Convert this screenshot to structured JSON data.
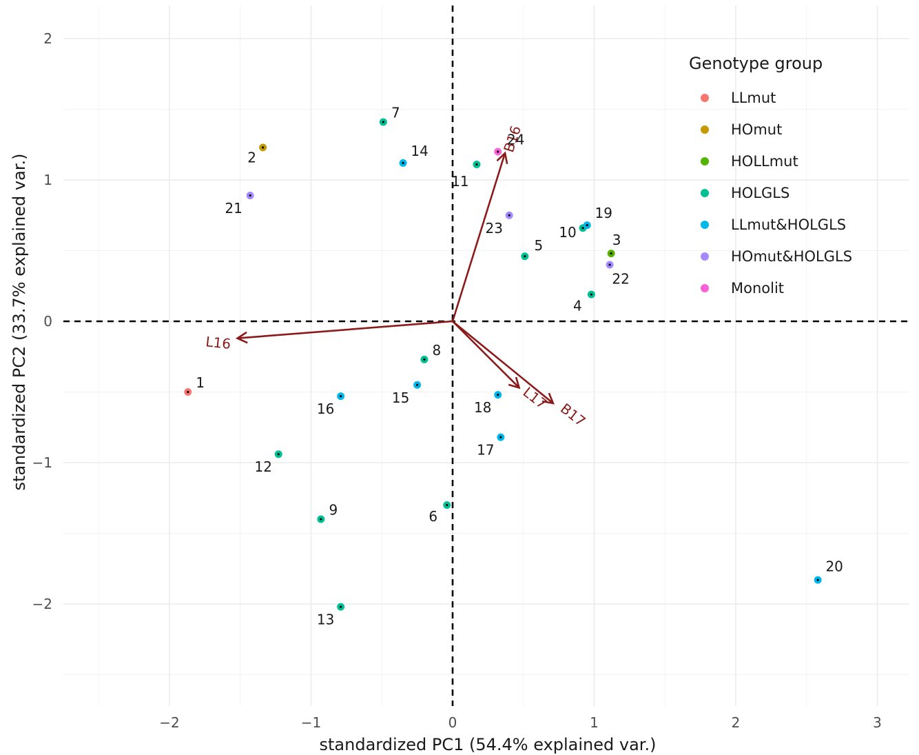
{
  "chart_data": {
    "type": "scatter",
    "subtype": "pca-biplot",
    "xlabel": "standardized PC1 (54.4% explained var.)",
    "ylabel": "standardized PC2 (33.7% explained var.)",
    "xlim": [
      -2.6,
      3.25
    ],
    "ylim": [
      -2.6,
      2.25
    ],
    "x_ticks": [
      -2,
      -1,
      0,
      1,
      2,
      3
    ],
    "y_ticks": [
      -2,
      -1,
      0,
      1,
      2
    ],
    "x_tick_labels": [
      "−2",
      "−1",
      "0",
      "1",
      "2",
      "3"
    ],
    "y_tick_labels": [
      "−2",
      "−1",
      "0",
      "1",
      "2"
    ],
    "grid": true,
    "reference_lines": {
      "x": 0,
      "y": 0,
      "style": "dashed"
    },
    "legend": {
      "title": "Genotype group",
      "placement": "right",
      "entries": [
        {
          "name": "LLmut",
          "color": "#F8766D"
        },
        {
          "name": "HOmut",
          "color": "#C49A00"
        },
        {
          "name": "HOLLmut",
          "color": "#53B400"
        },
        {
          "name": "HOLGLS",
          "color": "#00C094"
        },
        {
          "name": "LLmut&HOLGLS",
          "color": "#00B6EB"
        },
        {
          "name": "HOmut&HOLGLS",
          "color": "#A58AFF"
        },
        {
          "name": "Monolit",
          "color": "#FB61D7"
        }
      ]
    },
    "points": [
      {
        "label": "1",
        "x": -1.87,
        "y": -0.5,
        "group": "LLmut"
      },
      {
        "label": "2",
        "x": -1.34,
        "y": 1.23,
        "group": "HOmut"
      },
      {
        "label": "3",
        "x": 1.12,
        "y": 0.48,
        "group": "HOLLmut"
      },
      {
        "label": "4",
        "x": 0.98,
        "y": 0.19,
        "group": "HOLGLS"
      },
      {
        "label": "5",
        "x": 0.51,
        "y": 0.46,
        "group": "HOLGLS"
      },
      {
        "label": "6",
        "x": -0.04,
        "y": -1.3,
        "group": "HOLGLS"
      },
      {
        "label": "7",
        "x": -0.49,
        "y": 1.41,
        "group": "HOLGLS"
      },
      {
        "label": "8",
        "x": -0.2,
        "y": -0.27,
        "group": "HOLGLS"
      },
      {
        "label": "9",
        "x": -0.93,
        "y": -1.4,
        "group": "HOLGLS"
      },
      {
        "label": "10",
        "x": 0.92,
        "y": 0.66,
        "group": "HOLGLS"
      },
      {
        "label": "11",
        "x": 0.17,
        "y": 1.11,
        "group": "HOLGLS"
      },
      {
        "label": "12",
        "x": -1.23,
        "y": -0.94,
        "group": "HOLGLS"
      },
      {
        "label": "13",
        "x": -0.79,
        "y": -2.02,
        "group": "HOLGLS"
      },
      {
        "label": "14",
        "x": -0.35,
        "y": 1.12,
        "group": "LLmut&HOLGLS"
      },
      {
        "label": "15",
        "x": -0.25,
        "y": -0.45,
        "group": "LLmut&HOLGLS"
      },
      {
        "label": "16",
        "x": -0.79,
        "y": -0.53,
        "group": "LLmut&HOLGLS"
      },
      {
        "label": "17",
        "x": 0.34,
        "y": -0.82,
        "group": "LLmut&HOLGLS"
      },
      {
        "label": "18",
        "x": 0.32,
        "y": -0.52,
        "group": "LLmut&HOLGLS"
      },
      {
        "label": "19",
        "x": 0.95,
        "y": 0.68,
        "group": "LLmut&HOLGLS"
      },
      {
        "label": "20",
        "x": 2.58,
        "y": -1.83,
        "group": "LLmut&HOLGLS"
      },
      {
        "label": "21",
        "x": -1.43,
        "y": 0.89,
        "group": "HOmut&HOLGLS"
      },
      {
        "label": "22",
        "x": 1.11,
        "y": 0.4,
        "group": "HOmut&HOLGLS"
      },
      {
        "label": "23",
        "x": 0.4,
        "y": 0.75,
        "group": "HOmut&HOLGLS"
      },
      {
        "label": "24",
        "x": 0.32,
        "y": 1.2,
        "group": "Monolit"
      }
    ],
    "loadings": [
      {
        "label": "L16",
        "x": -1.52,
        "y": -0.12
      },
      {
        "label": "B16",
        "x": 0.37,
        "y": 1.19
      },
      {
        "label": "L17",
        "x": 0.47,
        "y": -0.47
      },
      {
        "label": "B17",
        "x": 0.71,
        "y": -0.58
      }
    ],
    "loading_color": "#8b1a1a"
  }
}
